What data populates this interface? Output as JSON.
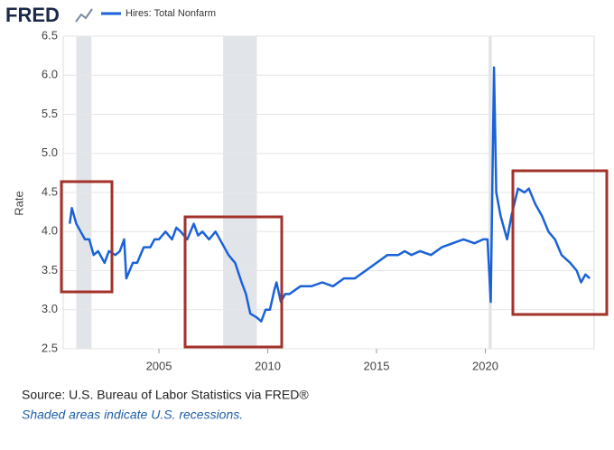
{
  "logo": "FRED",
  "chart_data": {
    "type": "line",
    "ylabel": "Rate",
    "x": [
      2000.9,
      2001.0,
      2001.2,
      2001.4,
      2001.6,
      2001.8,
      2002.0,
      2002.2,
      2002.5,
      2002.7,
      2003.0,
      2003.2,
      2003.4,
      2003.5,
      2003.8,
      2004.0,
      2004.3,
      2004.6,
      2004.8,
      2005.0,
      2005.3,
      2005.6,
      2005.8,
      2006.0,
      2006.3,
      2006.6,
      2006.8,
      2007.0,
      2007.3,
      2007.6,
      2007.9,
      2008.2,
      2008.5,
      2008.8,
      2009.0,
      2009.2,
      2009.5,
      2009.7,
      2009.9,
      2010.1,
      2010.3,
      2010.4,
      2010.6,
      2010.8,
      2011.0,
      2011.5,
      2012.0,
      2012.5,
      2013.0,
      2013.5,
      2014.0,
      2014.5,
      2015.0,
      2015.5,
      2016.0,
      2016.3,
      2016.6,
      2017.0,
      2017.5,
      2018.0,
      2018.5,
      2019.0,
      2019.5,
      2019.9,
      2020.1,
      2020.25,
      2020.4,
      2020.5,
      2020.7,
      2021.0,
      2021.2,
      2021.5,
      2021.8,
      2022.0,
      2022.3,
      2022.6,
      2022.9,
      2023.2,
      2023.5,
      2023.9,
      2024.2,
      2024.4,
      2024.6,
      2024.8
    ],
    "series": [
      {
        "name": "Hires: Total Nonfarm",
        "color": "#1a62d8",
        "values": [
          4.1,
          4.3,
          4.1,
          4.0,
          3.9,
          3.9,
          3.7,
          3.75,
          3.6,
          3.75,
          3.7,
          3.75,
          3.9,
          3.4,
          3.6,
          3.6,
          3.8,
          3.8,
          3.9,
          3.9,
          4.0,
          3.9,
          4.05,
          4.0,
          3.9,
          4.1,
          3.95,
          4.0,
          3.9,
          4.0,
          3.85,
          3.7,
          3.6,
          3.35,
          3.2,
          2.95,
          2.9,
          2.85,
          3.0,
          3.0,
          3.25,
          3.35,
          3.1,
          3.2,
          3.2,
          3.3,
          3.3,
          3.35,
          3.3,
          3.4,
          3.4,
          3.5,
          3.6,
          3.7,
          3.7,
          3.75,
          3.7,
          3.75,
          3.7,
          3.8,
          3.85,
          3.9,
          3.85,
          3.9,
          3.9,
          3.1,
          6.1,
          4.5,
          4.2,
          3.9,
          4.2,
          4.55,
          4.5,
          4.55,
          4.35,
          4.2,
          4.0,
          3.9,
          3.7,
          3.6,
          3.5,
          3.35,
          3.45,
          3.4
        ]
      }
    ],
    "recessions": [
      [
        2001.2,
        2001.9
      ],
      [
        2007.95,
        2009.5
      ],
      [
        2020.15,
        2020.3
      ]
    ],
    "recession_color": "#e1e5ea",
    "xlim": [
      2000.6,
      2025.0
    ],
    "xticks": [
      2005,
      2010,
      2015,
      2020
    ],
    "ylim": [
      2.5,
      6.5
    ],
    "yticks": [
      2.5,
      {
        "value": 3,
        "label": "3.0"
      },
      3.5,
      {
        "value": 4,
        "label": "4.0"
      },
      4.5,
      {
        "value": 5,
        "label": "5.0"
      },
      5.5,
      {
        "value": 6,
        "label": "6.0"
      },
      6.5
    ],
    "grid": true
  },
  "source": "Source: U.S. Bureau of Labor Statistics via FRED®",
  "note": "Shaded areas indicate U.S. recessions."
}
